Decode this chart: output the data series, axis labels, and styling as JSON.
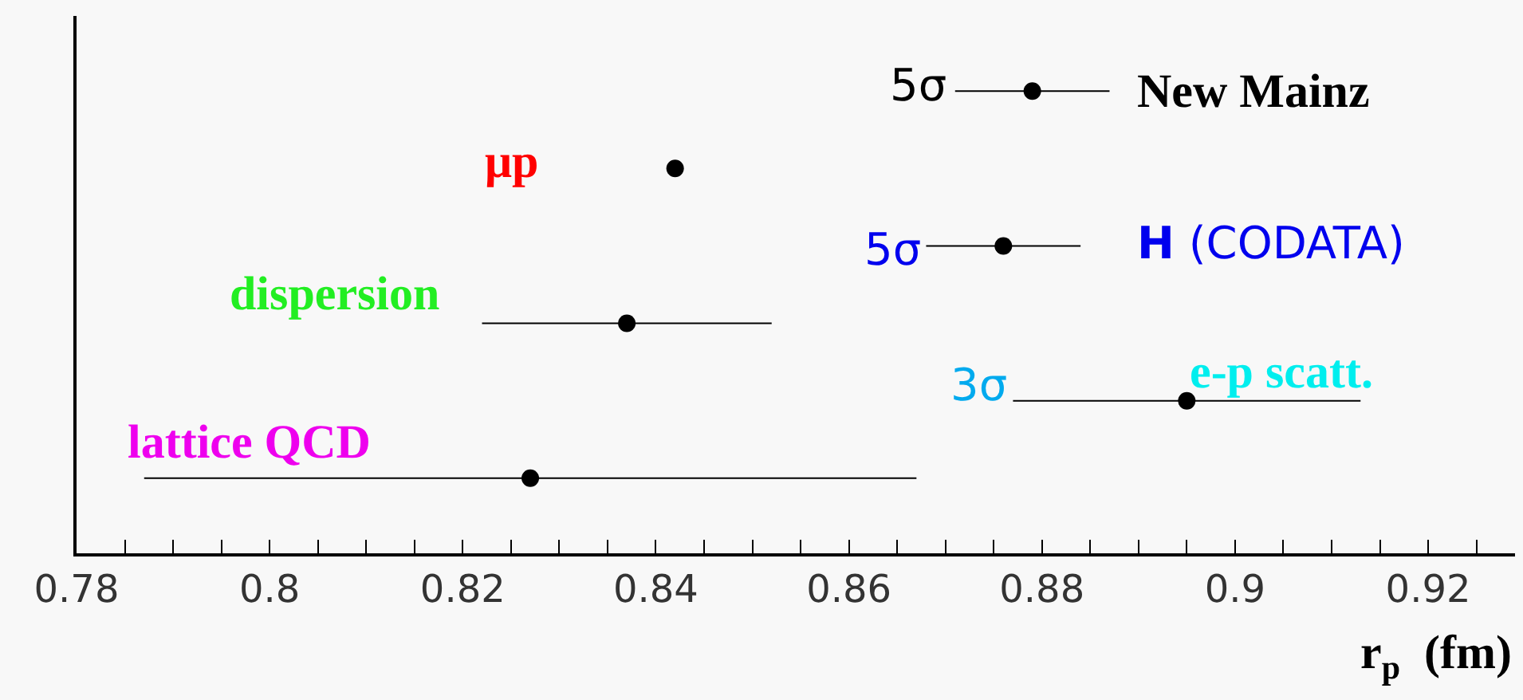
{
  "chart_data": {
    "type": "scatter",
    "orientation": "horizontal",
    "marker": "circle",
    "grid": false,
    "tick_labels": "x",
    "xlabel": "r$_{p}$  (fm)",
    "categories": [
      null,
      null,
      null,
      null,
      null,
      null
    ],
    "values": [
      0.879,
      0.842,
      0.876,
      0.837,
      0.895,
      0.827
    ],
    "errors": [
      0.008,
      null,
      0.008,
      0.015,
      0.018,
      0.04
    ],
    "color": "#000000",
    "xlim": [
      0.78,
      0.929
    ],
    "xticks": [
      0.78,
      {
        "value": 0.785,
        "label": null
      },
      {
        "value": 0.79,
        "label": null
      },
      {
        "value": 0.795,
        "label": null
      },
      0.8,
      {
        "value": 0.805,
        "label": null
      },
      {
        "value": 0.81,
        "label": null
      },
      {
        "value": 0.815,
        "label": null
      },
      0.82,
      {
        "value": 0.825,
        "label": null
      },
      {
        "value": 0.83,
        "label": null
      },
      {
        "value": 0.835,
        "label": null
      },
      0.84,
      {
        "value": 0.845,
        "label": null
      },
      {
        "value": 0.85,
        "label": null
      },
      {
        "value": 0.855,
        "label": null
      },
      0.86,
      {
        "value": 0.865,
        "label": null
      },
      {
        "value": 0.87,
        "label": null
      },
      {
        "value": 0.875,
        "label": null
      },
      0.88,
      {
        "value": 0.885,
        "label": null
      },
      {
        "value": 0.89,
        "label": null
      },
      {
        "value": 0.895,
        "label": null
      },
      0.9,
      {
        "value": 0.905,
        "label": null
      },
      {
        "value": 0.91,
        "label": null
      },
      {
        "value": 0.915,
        "label": null
      },
      0.92,
      {
        "value": 0.925,
        "label": null
      }
    ],
    "annotations": [
      "5σ",
      "New Mainz",
      "μp",
      "5σ",
      "H (CODATA)",
      "dispersion",
      "3σ",
      "e-p scatt.",
      "lattice QCD"
    ]
  }
}
